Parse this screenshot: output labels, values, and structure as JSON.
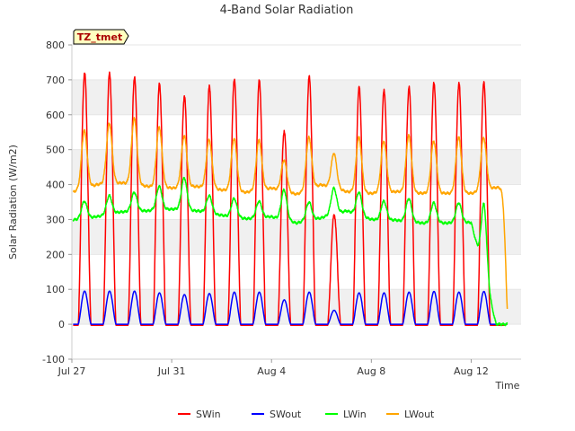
{
  "chart_data": {
    "type": "line",
    "title": "4-Band Solar Radiation",
    "xlabel": "Time",
    "ylabel": "Solar Radiation (W/m2)",
    "station_label": "TZ_tmet",
    "xlim": [
      "2023-07-27",
      "2023-08-14"
    ],
    "ylim": [
      -100,
      800
    ],
    "yticks": [
      -100,
      0,
      100,
      200,
      300,
      400,
      500,
      600,
      700,
      800
    ],
    "xticks": [
      {
        "date": "2023-07-27",
        "label": "Jul 27"
      },
      {
        "date": "2023-07-31",
        "label": "Jul 31"
      },
      {
        "date": "2023-08-04",
        "label": "Aug 4"
      },
      {
        "date": "2023-08-08",
        "label": "Aug 8"
      },
      {
        "date": "2023-08-12",
        "label": "Aug 12"
      }
    ],
    "grid": true,
    "legend_position": "bottom",
    "days": [
      "2023-07-27",
      "2023-07-28",
      "2023-07-29",
      "2023-07-30",
      "2023-07-31",
      "2023-08-01",
      "2023-08-02",
      "2023-08-03",
      "2023-08-04",
      "2023-08-05",
      "2023-08-06",
      "2023-08-07",
      "2023-08-08",
      "2023-08-09",
      "2023-08-10",
      "2023-08-11",
      "2023-08-12",
      "2023-08-13"
    ],
    "series": [
      {
        "name": "SWin",
        "color": "#ff0000",
        "daily_peak": [
          720,
          718,
          708,
          688,
          655,
          680,
          703,
          697,
          555,
          708,
          315,
          678,
          672,
          678,
          692,
          690,
          693,
          0
        ],
        "night": -3
      },
      {
        "name": "SWout",
        "color": "#0000ff",
        "daily_peak": [
          95,
          95,
          95,
          90,
          85,
          88,
          92,
          92,
          70,
          92,
          40,
          90,
          90,
          92,
          94,
          92,
          94,
          0
        ],
        "night": 0
      },
      {
        "name": "LWin",
        "color": "#00ff00",
        "daily_peak": [
          352,
          368,
          378,
          395,
          420,
          368,
          360,
          352,
          385,
          350,
          390,
          378,
          352,
          360,
          348,
          348,
          345,
          0
        ],
        "daily_min": [
          298,
          308,
          322,
          325,
          330,
          325,
          312,
          302,
          308,
          290,
          305,
          325,
          300,
          298,
          290,
          290,
          292,
          0
        ]
      },
      {
        "name": "LWout",
        "color": "#ffa500",
        "daily_peak": [
          555,
          575,
          590,
          565,
          540,
          528,
          532,
          527,
          470,
          535,
          490,
          535,
          525,
          540,
          525,
          535,
          535,
          0
        ],
        "daily_min": [
          378,
          400,
          405,
          395,
          390,
          395,
          385,
          378,
          390,
          372,
          400,
          380,
          375,
          380,
          375,
          375,
          375,
          392
        ]
      }
    ]
  }
}
